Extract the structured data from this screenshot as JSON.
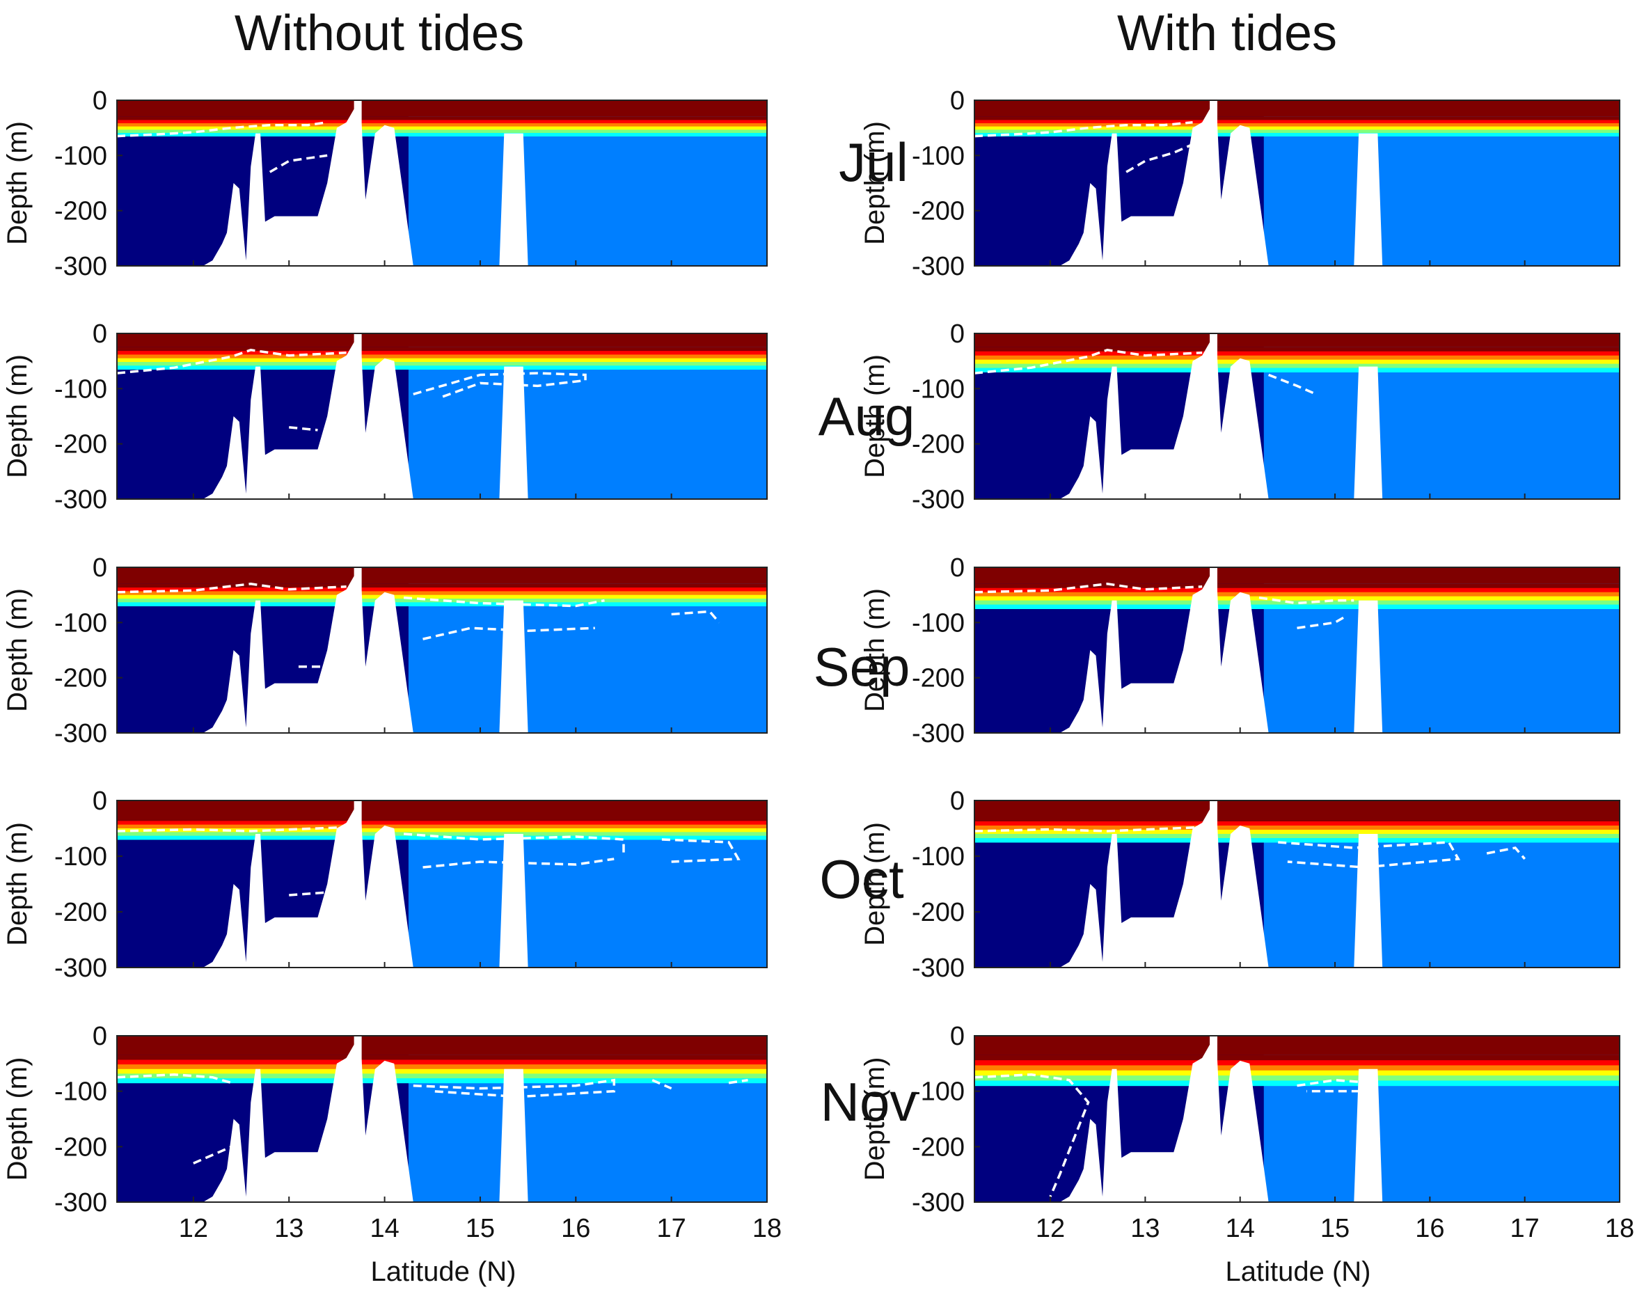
{
  "chart_data": {
    "type": "heatmap",
    "description": "Depth–latitude sections of a scalar field (jet colormap: red surface, dark blue at depth). White dashed contour marks the threshold boundary; white regions are topography/masked.",
    "columns": [
      {
        "key": "without",
        "title": "Without tides"
      },
      {
        "key": "with",
        "title": "With tides"
      }
    ],
    "months": [
      "Jul",
      "Aug",
      "Sep",
      "Oct",
      "Nov"
    ],
    "ylabel": "Depth (m)",
    "xlabel": "Latitude (N)",
    "ylim": [
      -300,
      0
    ],
    "xlim": [
      11.2,
      18
    ],
    "yticks": [
      0,
      -100,
      -200,
      -300
    ],
    "xticks": [
      12,
      13,
      14,
      15,
      16,
      17,
      18
    ],
    "colormap": [
      "#00007f",
      "#0000ff",
      "#007fff",
      "#00ffff",
      "#7fff7f",
      "#ffff00",
      "#ff7f00",
      "#ff0000",
      "#7f0000"
    ],
    "bathymetry_depth": [
      [
        11.2,
        -300
      ],
      [
        12.1,
        -300
      ],
      [
        12.2,
        -290
      ],
      [
        12.3,
        -260
      ],
      [
        12.35,
        -240
      ],
      [
        12.42,
        -150
      ],
      [
        12.48,
        -160
      ],
      [
        12.55,
        -290
      ],
      [
        12.6,
        -120
      ],
      [
        12.65,
        -60
      ],
      [
        12.7,
        -60
      ],
      [
        12.75,
        -220
      ],
      [
        12.85,
        -210
      ],
      [
        13.0,
        -210
      ],
      [
        13.3,
        -210
      ],
      [
        13.4,
        -150
      ],
      [
        13.5,
        -50
      ],
      [
        13.6,
        -40
      ],
      [
        13.7,
        -10
      ],
      [
        13.75,
        -10
      ],
      [
        13.8,
        -180
      ],
      [
        13.9,
        -60
      ],
      [
        14.0,
        -45
      ],
      [
        14.1,
        -50
      ],
      [
        14.3,
        -300
      ],
      [
        15.2,
        -300
      ],
      [
        15.25,
        -60
      ],
      [
        15.45,
        -60
      ],
      [
        15.5,
        -300
      ],
      [
        18.0,
        -300
      ]
    ],
    "gap_lat": [
      13.68,
      13.76
    ],
    "panels": [
      {
        "column": "without",
        "month": "Jul",
        "mixed_layer_depth": 30,
        "deep_value_south": 0,
        "deep_value_north": 2,
        "thermocline_width": 35,
        "contours": [
          [
            [
              11.2,
              -65
            ],
            [
              11.6,
              -62
            ],
            [
              12.0,
              -58
            ],
            [
              12.4,
              -50
            ],
            [
              12.8,
              -45
            ],
            [
              13.2,
              -45
            ],
            [
              13.4,
              -40
            ]
          ],
          [
            [
              12.8,
              -130
            ],
            [
              13.0,
              -110
            ],
            [
              13.2,
              -105
            ],
            [
              13.4,
              -100
            ]
          ]
        ]
      },
      {
        "column": "with",
        "month": "Jul",
        "mixed_layer_depth": 30,
        "deep_value_south": 0,
        "deep_value_north": 2,
        "thermocline_width": 35,
        "contours": [
          [
            [
              11.2,
              -65
            ],
            [
              11.6,
              -62
            ],
            [
              12.0,
              -58
            ],
            [
              12.4,
              -50
            ],
            [
              12.8,
              -45
            ],
            [
              13.2,
              -45
            ],
            [
              13.5,
              -40
            ]
          ],
          [
            [
              12.8,
              -130
            ],
            [
              13.0,
              -110
            ],
            [
              13.3,
              -95
            ],
            [
              13.5,
              -80
            ]
          ]
        ]
      },
      {
        "column": "without",
        "month": "Aug",
        "mixed_layer_depth": 25,
        "deep_value_south": 0,
        "deep_value_north": 2,
        "thermocline_width": 40,
        "contours": [
          [
            [
              11.2,
              -72
            ],
            [
              11.8,
              -62
            ],
            [
              12.4,
              -42
            ],
            [
              12.6,
              -30
            ],
            [
              13.0,
              -40
            ],
            [
              13.6,
              -35
            ]
          ],
          [
            [
              14.3,
              -110
            ],
            [
              14.7,
              -90
            ],
            [
              15.0,
              -75
            ],
            [
              15.6,
              -72
            ],
            [
              16.1,
              -75
            ],
            [
              16.1,
              -85
            ],
            [
              15.6,
              -95
            ],
            [
              15.0,
              -90
            ],
            [
              14.6,
              -115
            ]
          ],
          [
            [
              13.0,
              -170
            ],
            [
              13.3,
              -175
            ]
          ]
        ]
      },
      {
        "column": "with",
        "month": "Aug",
        "mixed_layer_depth": 25,
        "deep_value_south": 0,
        "deep_value_north": 2,
        "thermocline_width": 45,
        "contours": [
          [
            [
              11.2,
              -72
            ],
            [
              11.8,
              -62
            ],
            [
              12.4,
              -42
            ],
            [
              12.6,
              -30
            ],
            [
              13.0,
              -40
            ],
            [
              13.6,
              -35
            ]
          ],
          [
            [
              14.3,
              -75
            ],
            [
              14.6,
              -95
            ],
            [
              14.8,
              -110
            ]
          ]
        ]
      },
      {
        "column": "without",
        "month": "Sep",
        "mixed_layer_depth": 30,
        "deep_value_south": 0,
        "deep_value_north": 2,
        "thermocline_width": 40,
        "contours": [
          [
            [
              11.2,
              -45
            ],
            [
              12.0,
              -42
            ],
            [
              12.6,
              -30
            ],
            [
              13.0,
              -40
            ],
            [
              13.6,
              -35
            ]
          ],
          [
            [
              14.2,
              -55
            ],
            [
              15.0,
              -65
            ],
            [
              16.0,
              -70
            ],
            [
              16.3,
              -60
            ]
          ],
          [
            [
              14.4,
              -130
            ],
            [
              14.9,
              -110
            ],
            [
              15.5,
              -115
            ],
            [
              16.2,
              -110
            ]
          ],
          [
            [
              17.0,
              -85
            ],
            [
              17.4,
              -80
            ],
            [
              17.5,
              -100
            ]
          ],
          [
            [
              13.1,
              -180
            ],
            [
              13.4,
              -180
            ]
          ]
        ]
      },
      {
        "column": "with",
        "month": "Sep",
        "mixed_layer_depth": 30,
        "deep_value_south": 0,
        "deep_value_north": 2,
        "thermocline_width": 45,
        "contours": [
          [
            [
              11.2,
              -45
            ],
            [
              12.0,
              -42
            ],
            [
              12.6,
              -30
            ],
            [
              13.0,
              -40
            ],
            [
              13.6,
              -35
            ]
          ],
          [
            [
              14.2,
              -55
            ],
            [
              14.6,
              -65
            ],
            [
              15.0,
              -60
            ],
            [
              15.2,
              -60
            ]
          ],
          [
            [
              14.6,
              -110
            ],
            [
              15.0,
              -100
            ],
            [
              15.1,
              -90
            ]
          ]
        ]
      },
      {
        "column": "without",
        "month": "Oct",
        "mixed_layer_depth": 30,
        "deep_value_south": 0,
        "deep_value_north": 2,
        "thermocline_width": 40,
        "contours": [
          [
            [
              11.2,
              -55
            ],
            [
              12.0,
              -52
            ],
            [
              12.6,
              -55
            ],
            [
              13.6,
              -48
            ]
          ],
          [
            [
              14.2,
              -60
            ],
            [
              15.0,
              -70
            ],
            [
              16.0,
              -65
            ],
            [
              16.5,
              -70
            ],
            [
              16.5,
              -100
            ]
          ],
          [
            [
              14.4,
              -120
            ],
            [
              15.0,
              -110
            ],
            [
              16.0,
              -115
            ],
            [
              16.4,
              -105
            ]
          ],
          [
            [
              16.9,
              -70
            ],
            [
              17.6,
              -75
            ],
            [
              17.7,
              -105
            ],
            [
              17.0,
              -110
            ]
          ],
          [
            [
              13.0,
              -170
            ],
            [
              13.4,
              -165
            ]
          ]
        ]
      },
      {
        "column": "with",
        "month": "Oct",
        "mixed_layer_depth": 30,
        "deep_value_south": 0,
        "deep_value_north": 2,
        "thermocline_width": 45,
        "contours": [
          [
            [
              11.2,
              -55
            ],
            [
              12.0,
              -52
            ],
            [
              12.6,
              -55
            ],
            [
              13.6,
              -48
            ]
          ],
          [
            [
              14.4,
              -75
            ],
            [
              15.2,
              -85
            ],
            [
              16.2,
              -75
            ],
            [
              16.3,
              -105
            ],
            [
              15.3,
              -120
            ],
            [
              14.5,
              -110
            ]
          ],
          [
            [
              16.6,
              -95
            ],
            [
              16.9,
              -85
            ],
            [
              17.0,
              -105
            ]
          ]
        ]
      },
      {
        "column": "without",
        "month": "Nov",
        "mixed_layer_depth": 35,
        "deep_value_south": 0,
        "deep_value_north": 1.5,
        "thermocline_width": 50,
        "contours": [
          [
            [
              11.2,
              -75
            ],
            [
              11.8,
              -70
            ],
            [
              12.2,
              -75
            ],
            [
              12.4,
              -85
            ]
          ],
          [
            [
              14.3,
              -90
            ],
            [
              15.0,
              -95
            ],
            [
              16.0,
              -90
            ],
            [
              16.4,
              -80
            ],
            [
              16.4,
              -100
            ],
            [
              15.4,
              -110
            ],
            [
              14.5,
              -100
            ]
          ],
          [
            [
              16.8,
              -80
            ],
            [
              17.0,
              -95
            ]
          ],
          [
            [
              17.6,
              -85
            ],
            [
              17.8,
              -80
            ]
          ],
          [
            [
              12.0,
              -230
            ],
            [
              12.4,
              -200
            ]
          ]
        ]
      },
      {
        "column": "with",
        "month": "Nov",
        "mixed_layer_depth": 35,
        "deep_value_south": 0,
        "deep_value_north": 1.5,
        "thermocline_width": 55,
        "contours": [
          [
            [
              11.2,
              -75
            ],
            [
              11.8,
              -70
            ],
            [
              12.2,
              -80
            ],
            [
              12.4,
              -120
            ],
            [
              12.1,
              -250
            ],
            [
              12.0,
              -290
            ]
          ],
          [
            [
              14.6,
              -90
            ],
            [
              15.0,
              -80
            ],
            [
              15.4,
              -85
            ],
            [
              15.3,
              -100
            ],
            [
              14.7,
              -100
            ]
          ]
        ]
      }
    ]
  }
}
